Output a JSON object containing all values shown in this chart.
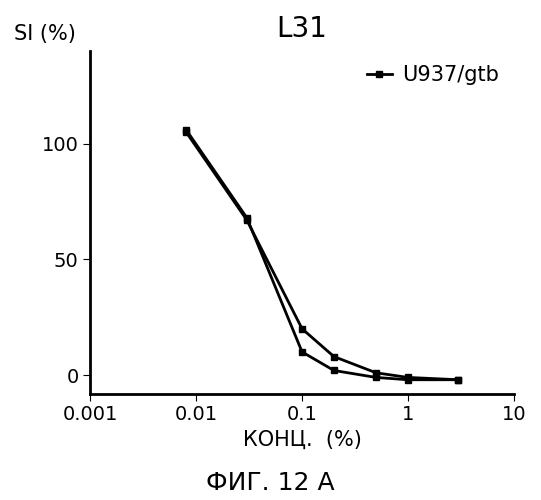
{
  "title": "L31",
  "ylabel": "SI (%)",
  "xlabel": "КОНЦ.  (%)",
  "caption": "ФИГ. 12 A",
  "legend_label": "U937/gtb",
  "background_color": "#ffffff",
  "ylim": [
    -8,
    140
  ],
  "yticks": [
    0,
    50,
    100
  ],
  "xticks": [
    0.001,
    0.01,
    0.1,
    1,
    10
  ],
  "xtick_labels": [
    "0.001",
    "0.01",
    "0.1",
    "1",
    "10"
  ],
  "series1_x": [
    0.008,
    0.03,
    0.1,
    0.2,
    0.5,
    1.0,
    3.0
  ],
  "series1_y": [
    105,
    67,
    20,
    8,
    1,
    -1,
    -2
  ],
  "series2_x": [
    0.008,
    0.03,
    0.1,
    0.2,
    0.5,
    1.0,
    3.0
  ],
  "series2_y": [
    106,
    68,
    10,
    2,
    -1,
    -2,
    -2
  ],
  "line_color": "#000000",
  "marker": "s",
  "marker_size": 5,
  "title_fontsize": 20,
  "label_fontsize": 15,
  "tick_fontsize": 14,
  "caption_fontsize": 18,
  "legend_fontsize": 15
}
